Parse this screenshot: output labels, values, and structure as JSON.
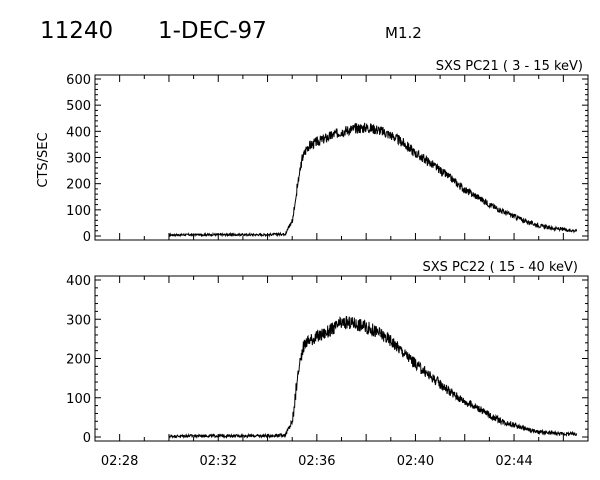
{
  "header": {
    "id": "11240",
    "date": "1-DEC-97",
    "class": "M1.2"
  },
  "chart_data": [
    {
      "type": "line",
      "title": "SXS PC21  (  3 - 15 keV)",
      "ylabel": "CTS/SEC",
      "xlabel": "",
      "xlim": [
        "02:27",
        "02:47"
      ],
      "ylim": [
        0,
        600
      ],
      "yticks": [
        "0",
        "100",
        "200",
        "300",
        "400",
        "500",
        "600"
      ],
      "xticks": [],
      "grid": false,
      "series": [
        {
          "x": [
            "02:30",
            "02:31",
            "02:32",
            "02:33",
            "02:34",
            "02:34.7",
            "02:35.0",
            "02:35.2",
            "02:35.4",
            "02:35.6",
            "02:36",
            "02:36.5",
            "02:37",
            "02:37.5",
            "02:38",
            "02:38.5",
            "02:39",
            "02:39.5",
            "02:40",
            "02:40.5",
            "02:41",
            "02:41.5",
            "02:42",
            "02:42.5",
            "02:43",
            "02:43.5",
            "02:44",
            "02:44.5",
            "02:45",
            "02:45.5",
            "02:46",
            "02:46.5"
          ],
          "values": [
            4,
            5,
            5,
            5,
            5,
            8,
            60,
            190,
            300,
            340,
            360,
            380,
            400,
            410,
            415,
            405,
            385,
            355,
            315,
            285,
            250,
            215,
            175,
            150,
            120,
            95,
            75,
            55,
            40,
            30,
            25,
            20
          ]
        }
      ]
    },
    {
      "type": "line",
      "title": "SXS PC22  ( 15 - 40 keV)",
      "ylabel": "",
      "xlabel": "",
      "xlim": [
        "02:27",
        "02:47"
      ],
      "ylim": [
        0,
        400
      ],
      "yticks": [
        "0",
        "100",
        "200",
        "300",
        "400"
      ],
      "xticks": [
        "02:28",
        "02:32",
        "02:36",
        "02:40",
        "02:44"
      ],
      "grid": false,
      "series": [
        {
          "x": [
            "02:30",
            "02:31",
            "02:32",
            "02:33",
            "02:34",
            "02:34.7",
            "02:35.0",
            "02:35.2",
            "02:35.4",
            "02:35.6",
            "02:36",
            "02:36.5",
            "02:37",
            "02:37.5",
            "02:38",
            "02:38.5",
            "02:39",
            "02:39.5",
            "02:40",
            "02:40.5",
            "02:41",
            "02:41.5",
            "02:42",
            "02:42.5",
            "02:43",
            "02:43.5",
            "02:44",
            "02:44.5",
            "02:45",
            "02:45.5",
            "02:46",
            "02:46.5"
          ],
          "values": [
            2,
            3,
            3,
            3,
            3,
            5,
            40,
            150,
            225,
            245,
            255,
            270,
            290,
            290,
            280,
            265,
            245,
            215,
            185,
            160,
            135,
            110,
            90,
            75,
            55,
            40,
            30,
            20,
            12,
            10,
            8,
            8
          ]
        }
      ]
    }
  ]
}
